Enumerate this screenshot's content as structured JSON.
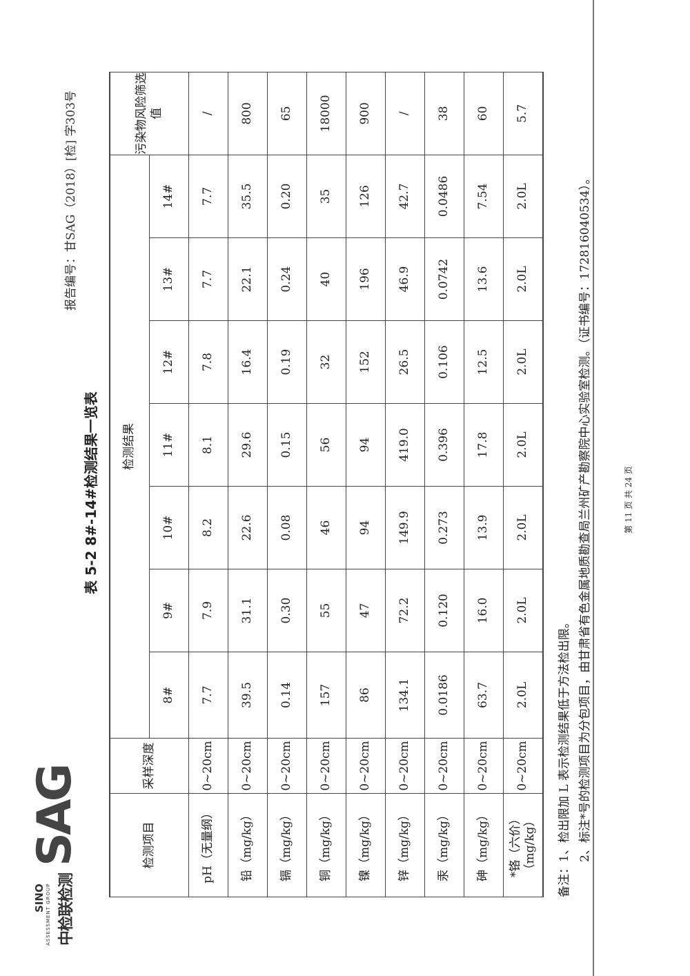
{
  "header": {
    "logo": {
      "cn": "中检联检测",
      "sino": "SINO",
      "group": "ASSESSMENT GROUP",
      "sag": "SAG"
    },
    "report_number": "报告编号：甘SAG（2018）[检] 字303号"
  },
  "title": "表 5-2    8#-14#检测结果一览表",
  "table": {
    "col_item": "检测项目",
    "col_depth": "采样深度",
    "col_results": "检测结果",
    "col_screening": "污染物风险筛选值",
    "samples": [
      "8#",
      "9#",
      "10#",
      "11#",
      "12#",
      "13#",
      "14#"
    ],
    "rows": [
      {
        "item": "pH（无量纲）",
        "depth": "0~20cm",
        "values": [
          "7.7",
          "7.9",
          "8.2",
          "8.1",
          "7.8",
          "7.7",
          "7.7"
        ],
        "screening": "/"
      },
      {
        "item": "铅（mg/kg）",
        "depth": "0~20cm",
        "values": [
          "39.5",
          "31.1",
          "22.6",
          "29.6",
          "16.4",
          "22.1",
          "35.5"
        ],
        "screening": "800"
      },
      {
        "item": "镉（mg/kg）",
        "depth": "0~20cm",
        "values": [
          "0.14",
          "0.30",
          "0.08",
          "0.15",
          "0.19",
          "0.24",
          "0.20"
        ],
        "screening": "65"
      },
      {
        "item": "铜（mg/kg）",
        "depth": "0~20cm",
        "values": [
          "157",
          "55",
          "46",
          "56",
          "32",
          "40",
          "35"
        ],
        "screening": "18000"
      },
      {
        "item": "镍（mg/kg）",
        "depth": "0~20cm",
        "values": [
          "86",
          "47",
          "94",
          "94",
          "152",
          "196",
          "126"
        ],
        "screening": "900"
      },
      {
        "item": "锌（mg/kg）",
        "depth": "0~20cm",
        "values": [
          "134.1",
          "72.2",
          "149.9",
          "419.0",
          "26.5",
          "46.9",
          "42.7"
        ],
        "screening": "/"
      },
      {
        "item": "汞（mg/kg）",
        "depth": "0~20cm",
        "values": [
          "0.0186",
          "0.120",
          "0.273",
          "0.396",
          "0.106",
          "0.0742",
          "0.0486"
        ],
        "screening": "38"
      },
      {
        "item": "砷（mg/kg）",
        "depth": "0~20cm",
        "values": [
          "63.7",
          "16.0",
          "13.9",
          "17.8",
          "12.5",
          "13.6",
          "7.54"
        ],
        "screening": "60"
      },
      {
        "item": "*铬（六价）（mg/kg）",
        "depth": "0~20cm",
        "values": [
          "2.0L",
          "2.0L",
          "2.0L",
          "2.0L",
          "2.0L",
          "2.0L",
          "2.0L"
        ],
        "screening": "5.7"
      }
    ]
  },
  "notes": [
    "备注：1、检出限加 L 表示检测结果低于方法检出限。",
    "　　　2、标注*号的检测项目为分包项目，由甘肃省有色金属地质勘查局兰州矿产勘察院中心实验室检测。（证书编号：172816040534）。"
  ],
  "footer": {
    "page": "第 11 页 共 24 页"
  }
}
